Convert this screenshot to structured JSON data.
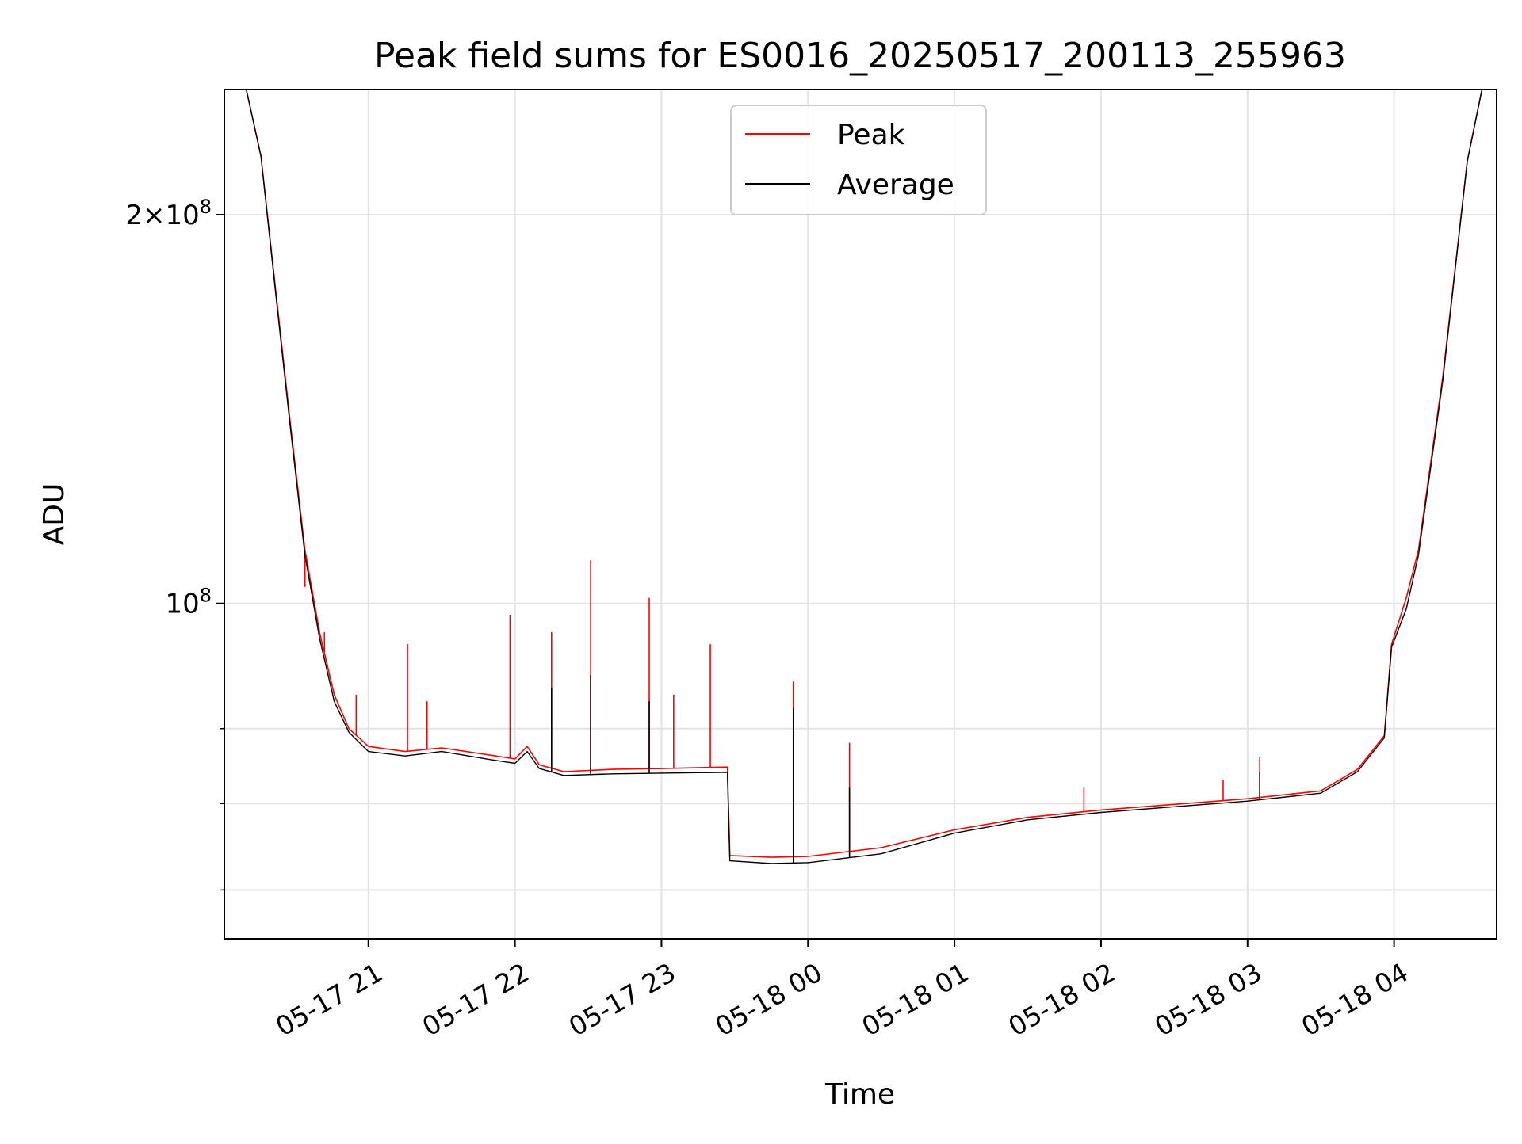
{
  "chart_data": {
    "type": "line",
    "title": "Peak field sums for ES0016_20250517_200113_255963",
    "xlabel": "Time",
    "ylabel": "ADU",
    "y_scale": "log",
    "grid": true,
    "legend_placement": "upper center",
    "x_tick_labels": [
      "05-17 21",
      "05-17 22",
      "05-17 23",
      "05-18 00",
      "05-18 01",
      "05-18 02",
      "05-18 03",
      "05-18 04"
    ],
    "x_ticks": [
      "2025-05-17T21:00",
      "2025-05-17T22:00",
      "2025-05-17T23:00",
      "2025-05-18T00:00",
      "2025-05-18T01:00",
      "2025-05-18T02:00",
      "2025-05-18T03:00",
      "2025-05-18T04:00"
    ],
    "xlim": [
      "2025-05-17T20:01",
      "2025-05-18T04:42"
    ],
    "ylim": [
      55000000,
      250000000
    ],
    "y_tick_labels": [
      {
        "value": 200000000,
        "mantissa": "2",
        "exponent": "8"
      },
      {
        "value": 100000000,
        "mantissa": "",
        "exponent": "8"
      }
    ],
    "y_minor_ticks": [
      60000000,
      70000000,
      80000000
    ],
    "series": [
      {
        "name": "Peak",
        "color": "#ff0000",
        "points": [
          [
            "2025-05-17T20:01",
            250000000
          ],
          [
            "2025-05-17T20:10",
            250000000
          ],
          [
            "2025-05-17T20:16",
            222000000
          ],
          [
            "2025-05-17T20:22",
            175000000
          ],
          [
            "2025-05-17T20:28",
            138000000
          ],
          [
            "2025-05-17T20:34",
            110000000
          ],
          [
            "2025-05-17T20:40",
            95000000
          ],
          [
            "2025-05-17T20:46",
            85000000
          ],
          [
            "2025-05-17T20:52",
            80000000
          ],
          [
            "2025-05-17T21:00",
            77500000
          ],
          [
            "2025-05-17T21:15",
            76800000
          ],
          [
            "2025-05-17T21:30",
            77300000
          ],
          [
            "2025-05-17T21:50",
            76300000
          ],
          [
            "2025-05-17T22:00",
            75800000
          ],
          [
            "2025-05-17T22:05",
            77500000
          ],
          [
            "2025-05-17T22:10",
            75000000
          ],
          [
            "2025-05-17T22:20",
            74100000
          ],
          [
            "2025-05-17T22:40",
            74400000
          ],
          [
            "2025-05-17T23:00",
            74500000
          ],
          [
            "2025-05-17T23:27",
            74700000
          ],
          [
            "2025-05-17T23:28",
            63800000
          ],
          [
            "2025-05-17T23:45",
            63600000
          ],
          [
            "2025-05-18T00:00",
            63700000
          ],
          [
            "2025-05-18T00:30",
            64700000
          ],
          [
            "2025-05-18T01:00",
            66800000
          ],
          [
            "2025-05-18T01:30",
            68300000
          ],
          [
            "2025-05-18T02:00",
            69200000
          ],
          [
            "2025-05-18T02:30",
            69900000
          ],
          [
            "2025-05-18T03:00",
            70600000
          ],
          [
            "2025-05-18T03:30",
            71600000
          ],
          [
            "2025-05-18T03:45",
            74400000
          ],
          [
            "2025-05-18T03:56",
            79000000
          ],
          [
            "2025-05-18T03:59",
            93000000
          ],
          [
            "2025-05-18T04:05",
            101000000
          ],
          [
            "2025-05-18T04:10",
            110000000
          ],
          [
            "2025-05-18T04:20",
            150000000
          ],
          [
            "2025-05-18T04:30",
            220000000
          ],
          [
            "2025-05-18T04:36",
            250000000
          ],
          [
            "2025-05-18T04:42",
            250000000
          ]
        ],
        "spikes": [
          [
            "2025-05-17T20:34",
            103000000
          ],
          [
            "2025-05-17T20:37",
            101000000
          ],
          [
            "2025-05-17T20:42",
            95000000
          ],
          [
            "2025-05-17T20:55",
            85000000
          ],
          [
            "2025-05-17T21:16",
            93000000
          ],
          [
            "2025-05-17T21:24",
            84000000
          ],
          [
            "2025-05-17T21:58",
            98000000
          ],
          [
            "2025-05-17T22:15",
            95000000
          ],
          [
            "2025-05-17T22:31",
            108000000
          ],
          [
            "2025-05-17T22:55",
            101000000
          ],
          [
            "2025-05-17T23:05",
            85000000
          ],
          [
            "2025-05-17T23:20",
            93000000
          ],
          [
            "2025-05-17T23:54",
            87000000
          ],
          [
            "2025-05-18T00:17",
            78000000
          ],
          [
            "2025-05-18T01:53",
            72000000
          ],
          [
            "2025-05-18T02:50",
            73000000
          ],
          [
            "2025-05-18T03:05",
            76000000
          ]
        ]
      },
      {
        "name": "Average",
        "color": "#000000",
        "points": [
          [
            "2025-05-17T20:01",
            250000000
          ],
          [
            "2025-05-17T20:10",
            250000000
          ],
          [
            "2025-05-17T20:16",
            222000000
          ],
          [
            "2025-05-17T20:22",
            174000000
          ],
          [
            "2025-05-17T20:28",
            137000000
          ],
          [
            "2025-05-17T20:34",
            109000000
          ],
          [
            "2025-05-17T20:40",
            94000000
          ],
          [
            "2025-05-17T20:46",
            84000000
          ],
          [
            "2025-05-17T20:52",
            79500000
          ],
          [
            "2025-05-17T21:00",
            76800000
          ],
          [
            "2025-05-17T21:15",
            76200000
          ],
          [
            "2025-05-17T21:30",
            76800000
          ],
          [
            "2025-05-17T21:50",
            75700000
          ],
          [
            "2025-05-17T22:00",
            75200000
          ],
          [
            "2025-05-17T22:05",
            76800000
          ],
          [
            "2025-05-17T22:10",
            74500000
          ],
          [
            "2025-05-17T22:20",
            73600000
          ],
          [
            "2025-05-17T22:40",
            73800000
          ],
          [
            "2025-05-17T23:00",
            73900000
          ],
          [
            "2025-05-17T23:27",
            74000000
          ],
          [
            "2025-05-17T23:28",
            63200000
          ],
          [
            "2025-05-17T23:45",
            62900000
          ],
          [
            "2025-05-18T00:00",
            63000000
          ],
          [
            "2025-05-18T00:30",
            64000000
          ],
          [
            "2025-05-18T01:00",
            66400000
          ],
          [
            "2025-05-18T01:30",
            68000000
          ],
          [
            "2025-05-18T02:00",
            68900000
          ],
          [
            "2025-05-18T02:30",
            69600000
          ],
          [
            "2025-05-18T03:00",
            70300000
          ],
          [
            "2025-05-18T03:30",
            71300000
          ],
          [
            "2025-05-18T03:45",
            74100000
          ],
          [
            "2025-05-18T03:56",
            78700000
          ],
          [
            "2025-05-18T03:59",
            92500000
          ],
          [
            "2025-05-18T04:05",
            99000000
          ],
          [
            "2025-05-18T04:10",
            109000000
          ],
          [
            "2025-05-18T04:20",
            149000000
          ],
          [
            "2025-05-18T04:30",
            220000000
          ],
          [
            "2025-05-18T04:36",
            250000000
          ],
          [
            "2025-05-18T04:42",
            250000000
          ]
        ],
        "spikes": [
          [
            "2025-05-17T22:15",
            86000000
          ],
          [
            "2025-05-17T22:31",
            88000000
          ],
          [
            "2025-05-17T22:55",
            84000000
          ],
          [
            "2025-05-17T23:54",
            83000000
          ],
          [
            "2025-05-18T00:17",
            72000000
          ],
          [
            "2025-05-18T03:05",
            74000000
          ]
        ]
      }
    ]
  }
}
